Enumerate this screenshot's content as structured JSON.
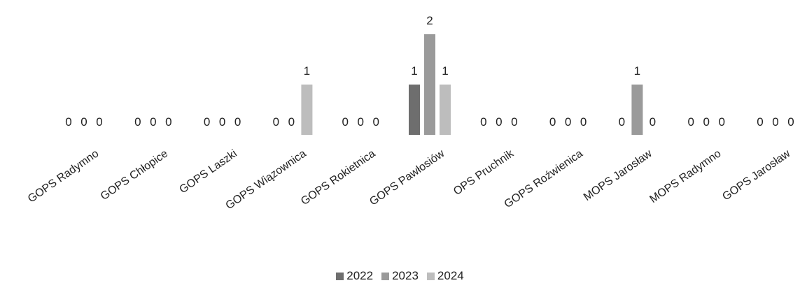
{
  "chart_data": {
    "type": "bar",
    "categories": [
      "GOPS Radymno",
      "GOPS Chłopice",
      "GOPS Laszki",
      "GOPS Wiązownica",
      "GOPS Rokietnica",
      "GOPS Pawłosiów",
      "OPS Pruchnik",
      "GOPS Roźwienica",
      "MOPS Jarosław",
      "MOPS Radymno",
      "GOPS Jarosław"
    ],
    "series": [
      {
        "name": "2022",
        "values": [
          0,
          0,
          0,
          0,
          0,
          1,
          0,
          0,
          0,
          0,
          0
        ],
        "color": "#6e6e6e"
      },
      {
        "name": "2023",
        "values": [
          0,
          0,
          0,
          0,
          0,
          2,
          0,
          0,
          1,
          0,
          0
        ],
        "color": "#9a9a9a"
      },
      {
        "name": "2024",
        "values": [
          0,
          0,
          0,
          1,
          0,
          1,
          0,
          0,
          0,
          0,
          0
        ],
        "color": "#bdbdbd"
      }
    ],
    "ylim": [
      0,
      2
    ],
    "grid": false,
    "legend_position": "bottom",
    "data_labels": true
  }
}
